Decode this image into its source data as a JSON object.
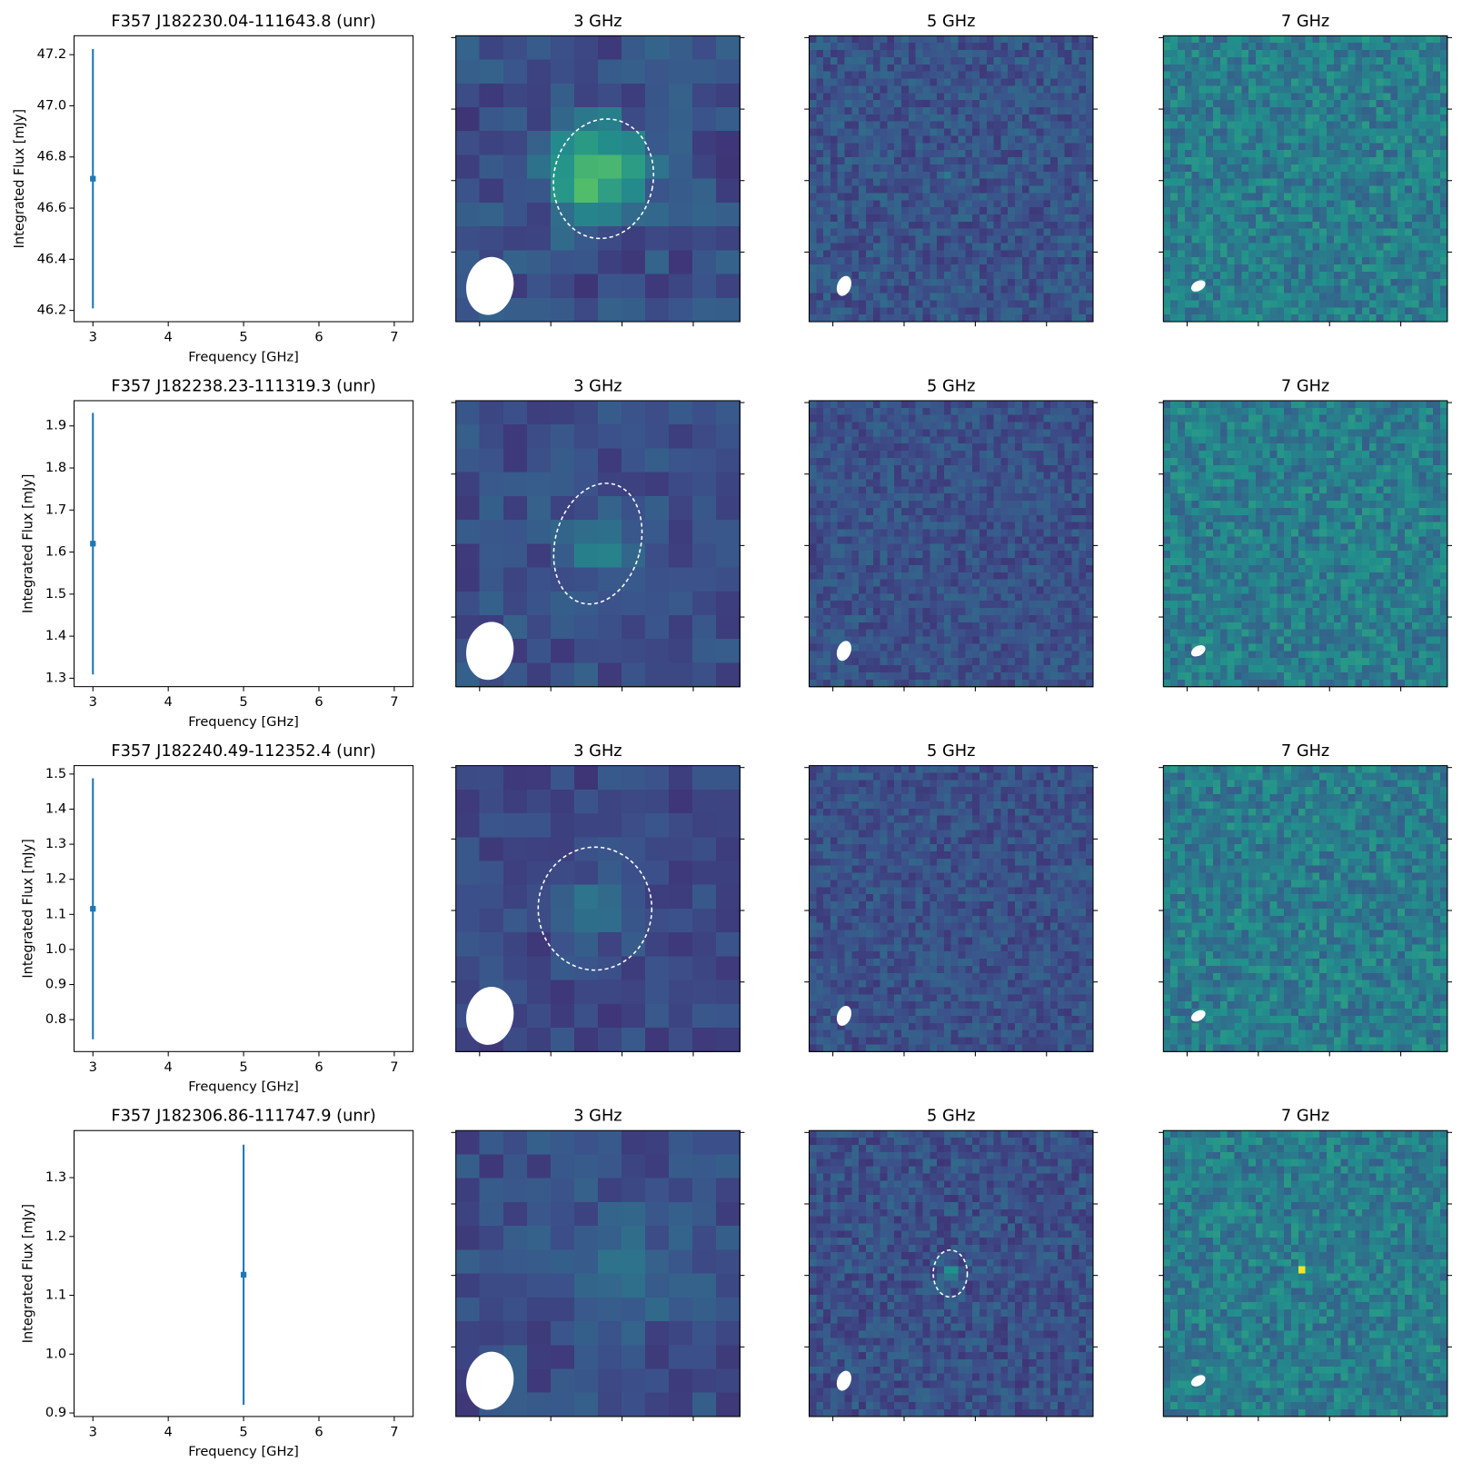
{
  "chart_data": [
    {
      "type": "errorbar",
      "title": "F357 J182230.04-111643.8 (unr)",
      "xlabel": "Frequency [GHz]",
      "ylabel": "Integrated Flux [mJy]",
      "x": [
        3
      ],
      "values": [
        46.715
      ],
      "errors": [
        0.507
      ],
      "color": "#1f77b4",
      "xlim": [
        2.75,
        7.25
      ],
      "xticks": [
        3,
        4,
        5,
        6,
        7
      ],
      "ylim": [
        46.156,
        47.274
      ],
      "yticks": [
        46.2,
        46.4,
        46.6,
        46.8,
        {
          "value": 47,
          "label": "47.0"
        },
        47.2
      ],
      "panels": [
        {
          "title": "3 GHz"
        },
        {
          "title": "5 GHz"
        },
        {
          "title": "7 GHz"
        }
      ]
    },
    {
      "type": "errorbar",
      "title": "F357 J182238.23-111319.3 (unr)",
      "xlabel": "Frequency [GHz]",
      "ylabel": "Integrated Flux [mJy]",
      "x": [
        3
      ],
      "values": [
        1.62
      ],
      "errors": [
        0.311
      ],
      "color": "#1f77b4",
      "xlim": [
        2.75,
        7.25
      ],
      "xticks": [
        3,
        4,
        5,
        6,
        7
      ],
      "ylim": [
        1.28,
        1.96
      ],
      "yticks": [
        1.3,
        1.4,
        1.5,
        1.6,
        1.7,
        1.8,
        1.9
      ],
      "panels": [
        {
          "title": "3 GHz"
        },
        {
          "title": "5 GHz"
        },
        {
          "title": "7 GHz"
        }
      ]
    },
    {
      "type": "errorbar",
      "title": "F357 J182240.49-112352.4 (unr)",
      "xlabel": "Frequency [GHz]",
      "ylabel": "Integrated Flux [mJy]",
      "x": [
        3
      ],
      "values": [
        1.116
      ],
      "errors": [
        0.372
      ],
      "color": "#1f77b4",
      "xlim": [
        2.75,
        7.25
      ],
      "xticks": [
        3,
        4,
        5,
        6,
        7
      ],
      "ylim": [
        0.709,
        1.524
      ],
      "yticks": [
        0.8,
        0.9,
        {
          "value": 1,
          "label": "1.0"
        },
        1.1,
        1.2,
        1.3,
        1.4,
        1.5
      ],
      "panels": [
        {
          "title": "3 GHz"
        },
        {
          "title": "5 GHz"
        },
        {
          "title": "7 GHz"
        }
      ]
    },
    {
      "type": "errorbar",
      "title": "F357 J182306.86-111747.9 (unr)",
      "xlabel": "Frequency [GHz]",
      "ylabel": "Integrated Flux [mJy]",
      "x": [
        5
      ],
      "values": [
        1.135
      ],
      "errors": [
        0.221
      ],
      "color": "#1f77b4",
      "xlim": [
        2.75,
        7.25
      ],
      "xticks": [
        3,
        4,
        5,
        6,
        7
      ],
      "ylim": [
        0.894,
        1.38
      ],
      "yticks": [
        0.9,
        {
          "value": 1,
          "label": "1.0"
        },
        1.1,
        1.2,
        1.3
      ],
      "panels": [
        {
          "title": "3 GHz"
        },
        {
          "title": "5 GHz"
        },
        {
          "title": "7 GHz"
        }
      ]
    }
  ]
}
